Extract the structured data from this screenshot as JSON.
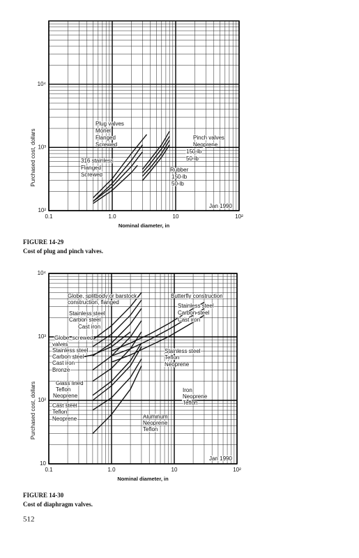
{
  "chart_data": [
    {
      "type": "line",
      "log_scale": true,
      "grid": true,
      "color": "#111111",
      "figure_label": "FIGURE 14-29",
      "caption": "Cost of plug and pinch valves.",
      "x_label": "Nominal diameter, in",
      "y_label": "Purchased cost, dollars",
      "xlim": [
        0.1,
        100
      ],
      "ylim": [
        100,
        100000
      ],
      "xticks": [
        0.1,
        {
          "value": 1,
          "label": "1.0"
        },
        10,
        {
          "value": 100,
          "label": "10²"
        }
      ],
      "yticks": [
        {
          "value": 100,
          "label": "10²"
        },
        {
          "value": 1000,
          "label": "10³"
        },
        {
          "value": 10000,
          "label": "10⁴"
        }
      ],
      "series": [
        {
          "x": [
            0.5,
            1,
            2,
            3.5
          ],
          "values": [
            160,
            320,
            800,
            1600
          ]
        },
        {
          "x": [
            0.5,
            1,
            2,
            3
          ],
          "values": [
            140,
            270,
            620,
            1100
          ]
        },
        {
          "x": [
            0.5,
            1,
            2,
            3
          ],
          "values": [
            140,
            240,
            500,
            850
          ]
        },
        {
          "x": [
            0.5,
            1,
            2,
            2.5
          ],
          "values": [
            130,
            210,
            400,
            520
          ]
        },
        {
          "x": [
            3,
            4,
            6,
            8
          ],
          "values": [
            450,
            650,
            1100,
            1800
          ]
        },
        {
          "x": [
            3,
            4,
            6,
            8
          ],
          "values": [
            400,
            560,
            950,
            1500
          ]
        },
        {
          "x": [
            3,
            4,
            6,
            8
          ],
          "values": [
            350,
            480,
            800,
            1300
          ]
        },
        {
          "x": [
            3,
            4,
            6,
            8
          ],
          "values": [
            300,
            420,
            700,
            1100
          ]
        }
      ],
      "annotations": [
        "Plug valves",
        "Monel",
        "Flanged",
        "Screwed",
        "316 stainless",
        "Flanged",
        "Screwed",
        "Pinch valves",
        "Neoprene",
        "150-lb",
        "50-lb",
        "Rubber",
        "150-lb",
        "50-lb",
        "Jan 1990"
      ]
    },
    {
      "type": "line",
      "log_scale": true,
      "grid": true,
      "color": "#111111",
      "figure_label": "FIGURE 14-30",
      "caption": "Cost of diaphragm valves.",
      "x_label": "Nominal diameter, in",
      "y_label": "Purchased cost, dollars",
      "xlim": [
        0.1,
        100
      ],
      "ylim": [
        10,
        10000
      ],
      "xticks": [
        0.1,
        {
          "value": 1,
          "label": "1.0"
        },
        10,
        {
          "value": 100,
          "label": "10²"
        }
      ],
      "yticks": [
        10,
        {
          "value": 100,
          "label": "10²"
        },
        {
          "value": 1000,
          "label": "10³"
        },
        {
          "value": 10000,
          "label": "10⁴"
        }
      ],
      "series": [
        {
          "x": [
            1,
            2,
            4,
            8,
            20,
            30
          ],
          "values": [
            600,
            800,
            1100,
            1600,
            2800,
            3500
          ]
        },
        {
          "x": [
            1,
            2,
            4,
            8,
            20,
            30
          ],
          "values": [
            500,
            650,
            900,
            1300,
            2200,
            2800
          ]
        },
        {
          "x": [
            1,
            2,
            4,
            8,
            20,
            30
          ],
          "values": [
            400,
            520,
            720,
            1000,
            1700,
            2200
          ]
        },
        {
          "x": [
            0.5,
            1,
            2,
            3
          ],
          "values": [
            900,
            1500,
            3000,
            5000
          ]
        },
        {
          "x": [
            0.5,
            1,
            2,
            3
          ],
          "values": [
            700,
            1100,
            2200,
            3800
          ]
        },
        {
          "x": [
            0.5,
            1,
            2,
            3
          ],
          "values": [
            500,
            800,
            1600,
            2800
          ]
        },
        {
          "x": [
            0.25,
            0.5,
            1,
            2
          ],
          "values": [
            450,
            520,
            700,
            1200
          ]
        },
        {
          "x": [
            0.5,
            1,
            2,
            3
          ],
          "values": [
            300,
            500,
            1000,
            1800
          ]
        },
        {
          "x": [
            0.5,
            1,
            2,
            3
          ],
          "values": [
            200,
            320,
            650,
            1200
          ]
        },
        {
          "x": [
            0.5,
            1,
            2,
            3
          ],
          "values": [
            120,
            200,
            420,
            800
          ]
        },
        {
          "x": [
            0.5,
            1,
            2,
            3
          ],
          "values": [
            100,
            170,
            350,
            700
          ]
        },
        {
          "x": [
            0.5,
            1,
            2,
            3
          ],
          "values": [
            70,
            110,
            230,
            450
          ]
        },
        {
          "x": [
            0.5,
            1,
            2,
            3
          ],
          "values": [
            30,
            60,
            150,
            350
          ]
        }
      ],
      "annotations": [
        "Globe, splitbody or barstock",
        "construction, flanged",
        "Stainless steel",
        "Carbon steel",
        "Cast iron",
        "Globe, screwed",
        "valves",
        "Stainless steel",
        "Carbon steel",
        "Cast iron",
        "Bronze",
        "Glass lined",
        "Teflon",
        "Neoprene",
        "Cast steel",
        "Teflon",
        "Neoprene",
        "Butterfly construction",
        "Stainless steel",
        "Carbon steel",
        "Cast iron",
        "Stainless steel",
        "Teflon",
        "Neoprene",
        "Iron",
        "Neoprene",
        "Teflon",
        "Aluminum",
        "Neoprene",
        "Teflon",
        "Jan 1990"
      ]
    }
  ],
  "page_number": 512
}
